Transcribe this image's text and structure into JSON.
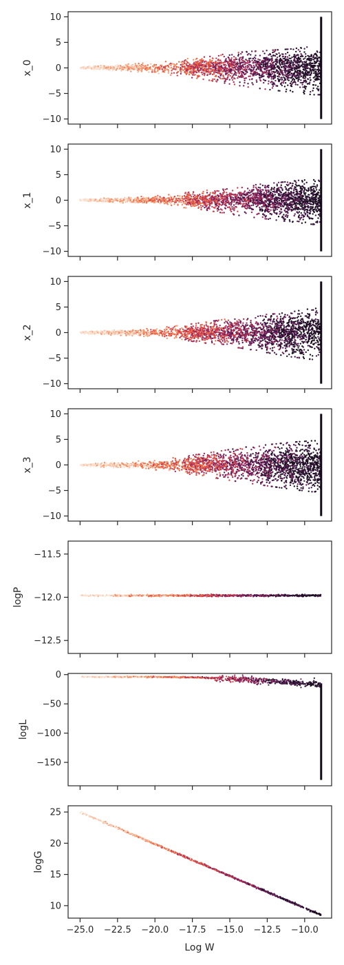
{
  "chart_data": [
    {
      "type": "scatter",
      "ylabel": "x_0",
      "ylim": [
        -11,
        11
      ],
      "yticks": [
        -10,
        -5,
        0,
        5,
        10
      ],
      "ytick_labels": [
        "−10",
        "−5",
        "0",
        "5",
        "10"
      ],
      "y_range_at_x": [
        [
          -25.0,
          -0.2,
          0.2
        ],
        [
          -20.0,
          -1.0,
          1.0
        ],
        [
          -17.0,
          -2.0,
          2.0
        ],
        [
          -14.0,
          -3.5,
          3.0
        ],
        [
          -11.0,
          -4.5,
          3.5
        ],
        [
          -9.5,
          -5.0,
          4.0
        ]
      ],
      "vertical_band": {
        "x": -8.9,
        "ymin": -10,
        "ymax": 10
      }
    },
    {
      "type": "scatter",
      "ylabel": "x_1",
      "ylim": [
        -11,
        11
      ],
      "yticks": [
        -10,
        -5,
        0,
        5,
        10
      ],
      "ytick_labels": [
        "−10",
        "−5",
        "0",
        "5",
        "10"
      ],
      "y_range_at_x": [
        [
          -25.0,
          -0.2,
          0.2
        ],
        [
          -20.0,
          -0.8,
          0.8
        ],
        [
          -17.0,
          -1.7,
          1.7
        ],
        [
          -14.0,
          -3.0,
          2.7
        ],
        [
          -11.0,
          -4.0,
          3.5
        ],
        [
          -9.5,
          -4.5,
          4.0
        ]
      ],
      "vertical_band": {
        "x": -8.9,
        "ymin": -10,
        "ymax": 10
      }
    },
    {
      "type": "scatter",
      "ylabel": "x_2",
      "ylim": [
        -11,
        11
      ],
      "yticks": [
        -10,
        -5,
        0,
        5,
        10
      ],
      "ytick_labels": [
        "−10",
        "−5",
        "0",
        "5",
        "10"
      ],
      "y_range_at_x": [
        [
          -25.0,
          -0.2,
          0.2
        ],
        [
          -20.0,
          -0.8,
          0.8
        ],
        [
          -17.0,
          -1.8,
          1.8
        ],
        [
          -14.0,
          -3.0,
          3.0
        ],
        [
          -11.0,
          -4.5,
          3.8
        ],
        [
          -9.5,
          -5.0,
          4.5
        ]
      ],
      "vertical_band": {
        "x": -8.9,
        "ymin": -10,
        "ymax": 10
      }
    },
    {
      "type": "scatter",
      "ylabel": "x_3",
      "ylim": [
        -11,
        11
      ],
      "yticks": [
        -10,
        -5,
        0,
        5,
        10
      ],
      "ytick_labels": [
        "−10",
        "−5",
        "0",
        "5",
        "10"
      ],
      "y_range_at_x": [
        [
          -25.0,
          -0.2,
          0.2
        ],
        [
          -20.0,
          -0.9,
          0.9
        ],
        [
          -17.0,
          -2.0,
          2.0
        ],
        [
          -14.0,
          -3.3,
          3.3
        ],
        [
          -11.0,
          -4.5,
          4.2
        ],
        [
          -9.5,
          -5.0,
          4.5
        ]
      ],
      "vertical_band": {
        "x": -8.9,
        "ymin": -10,
        "ymax": 10
      }
    },
    {
      "type": "scatter",
      "ylabel": "logP",
      "ylim": [
        -12.65,
        -11.35
      ],
      "yticks": [
        -11.5,
        -12.0,
        -12.5
      ],
      "ytick_labels": [
        "−11.5",
        "−12.0",
        "−12.5"
      ],
      "line_points": [
        [
          -25.0,
          -11.98
        ],
        [
          -8.9,
          -11.98
        ]
      ]
    },
    {
      "type": "scatter",
      "ylabel": "logL",
      "ylim": [
        -190,
        2
      ],
      "yticks": [
        0,
        -50,
        -100,
        -150
      ],
      "ytick_labels": [
        "0",
        "−50",
        "−100",
        "−150"
      ],
      "line_points": [
        [
          -25.0,
          -4
        ],
        [
          -20.0,
          -4
        ],
        [
          -17.0,
          -5
        ],
        [
          -15.0,
          -7
        ],
        [
          -13.0,
          -10
        ],
        [
          -11.0,
          -13
        ],
        [
          -9.5,
          -16
        ],
        [
          -8.9,
          -18
        ]
      ],
      "vertical_band": {
        "x": -8.9,
        "ymin": -180,
        "ymax": -15
      }
    },
    {
      "type": "scatter",
      "ylabel": "logG",
      "ylim": [
        8,
        26
      ],
      "yticks": [
        10,
        15,
        20,
        25
      ],
      "ytick_labels": [
        "10",
        "15",
        "20",
        "25"
      ],
      "line_points": [
        [
          -25.0,
          25.0
        ],
        [
          -8.9,
          8.5
        ]
      ]
    }
  ],
  "x_axis": {
    "label": "Log W",
    "xlim": [
      -25.8,
      -8.2
    ],
    "ticks": [
      -25.0,
      -22.5,
      -20.0,
      -17.5,
      -15.0,
      -12.5,
      -10.0
    ],
    "tick_labels": [
      "−25.0",
      "−22.5",
      "−20.0",
      "−17.5",
      "−15.0",
      "−12.5",
      "−10.0"
    ]
  },
  "colors": {
    "axes": "#262626",
    "text": "#262626",
    "colormap": [
      "#fbe3d4",
      "#f7c2a8",
      "#f2956c",
      "#ec6945",
      "#d1454e",
      "#a52c59",
      "#71205d",
      "#411a4a",
      "#1c0f21"
    ]
  }
}
